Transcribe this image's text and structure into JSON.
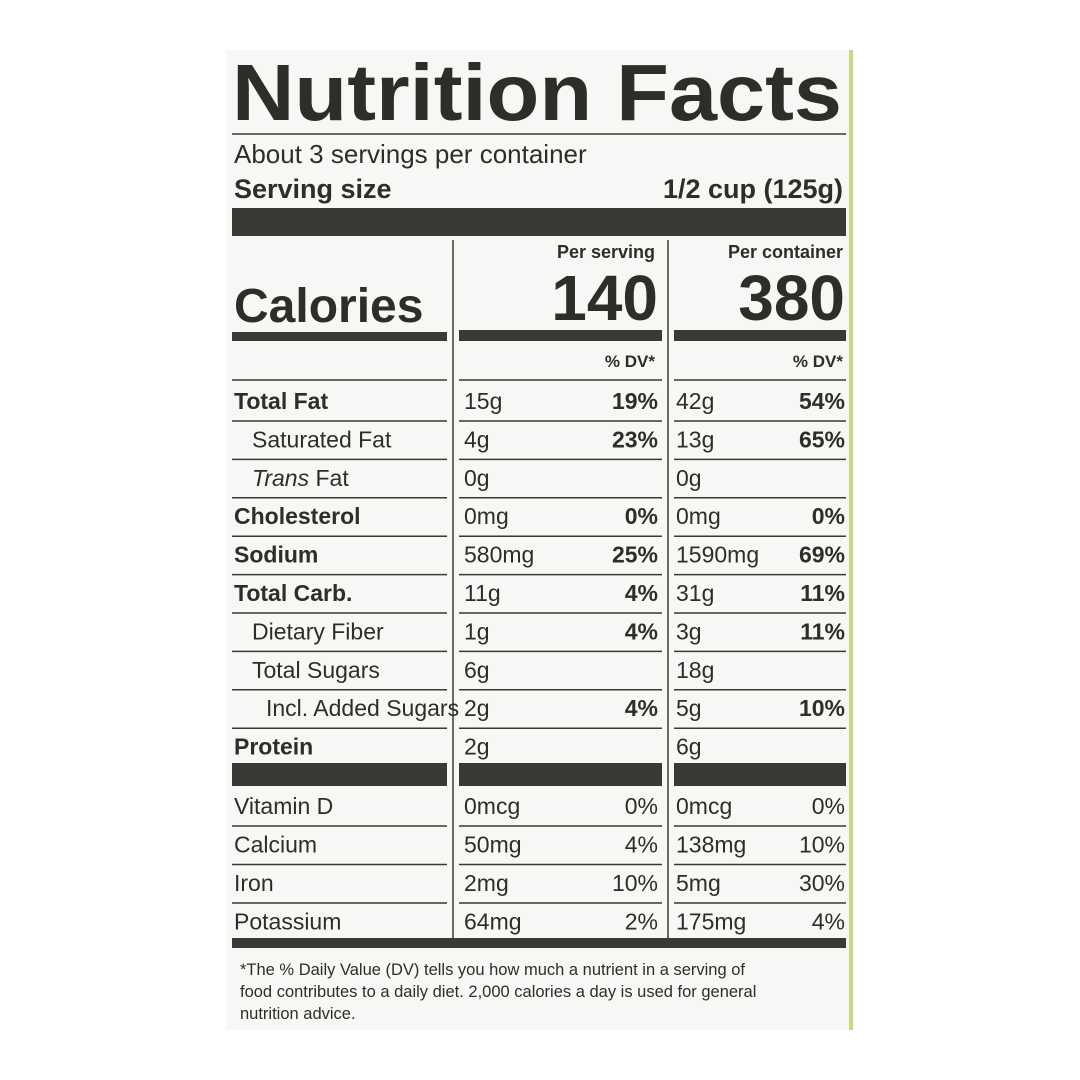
{
  "title": "Nutrition Facts",
  "servings": "About 3 servings per container",
  "serving_size": {
    "label": "Serving size",
    "value": "1/2 cup (125g)"
  },
  "calories": {
    "label": "Calories",
    "per_serving_header": "Per serving",
    "per_container_header": "Per container",
    "per_serving": 140,
    "per_container": 380
  },
  "dv_header": "% DV*",
  "nutrients": [
    {
      "name": "Total Fat",
      "serving_amount": "15g",
      "serving_dv": "19%",
      "container_amount": "42g",
      "container_dv": "54%"
    },
    {
      "name": "Saturated Fat",
      "serving_amount": "4g",
      "serving_dv": "23%",
      "container_amount": "13g",
      "container_dv": "65%"
    },
    {
      "name_prefix": "Trans",
      "name": "Fat",
      "serving_amount": "0g",
      "container_amount": "0g"
    },
    {
      "name": "Cholesterol",
      "serving_amount": "0mg",
      "serving_dv": "0%",
      "container_amount": "0mg",
      "container_dv": "0%"
    },
    {
      "name": "Sodium",
      "serving_amount": "580mg",
      "serving_dv": "25%",
      "container_amount": "1590mg",
      "container_dv": "69%"
    },
    {
      "name": "Total Carb.",
      "serving_amount": "11g",
      "serving_dv": "4%",
      "container_amount": "31g",
      "container_dv": "11%"
    },
    {
      "name": "Dietary Fiber",
      "serving_amount": "1g",
      "serving_dv": "4%",
      "container_amount": "3g",
      "container_dv": "11%"
    },
    {
      "name": "Total Sugars",
      "serving_amount": "6g",
      "container_amount": "18g"
    },
    {
      "name": "Incl. Added Sugars",
      "serving_amount": "2g",
      "serving_dv": "4%",
      "container_amount": "5g",
      "container_dv": "10%"
    },
    {
      "name": "Protein",
      "serving_amount": "2g",
      "container_amount": "6g"
    }
  ],
  "vitamins": [
    {
      "name": "Vitamin D",
      "serving_amount": "0mcg",
      "serving_dv": "0%",
      "container_amount": "0mcg",
      "container_dv": "0%"
    },
    {
      "name": "Calcium",
      "serving_amount": "50mg",
      "serving_dv": "4%",
      "container_amount": "138mg",
      "container_dv": "10%"
    },
    {
      "name": "Iron",
      "serving_amount": "2mg",
      "serving_dv": "10%",
      "container_amount": "5mg",
      "container_dv": "30%"
    },
    {
      "name": "Potassium",
      "serving_amount": "64mg",
      "serving_dv": "2%",
      "container_amount": "175mg",
      "container_dv": "4%"
    }
  ],
  "footnote": [
    "*The % Daily Value (DV) tells you how much a nutrient in a serving of",
    "food contributes to a daily diet. 2,000 calories a day is used for general",
    "nutrition advice."
  ]
}
